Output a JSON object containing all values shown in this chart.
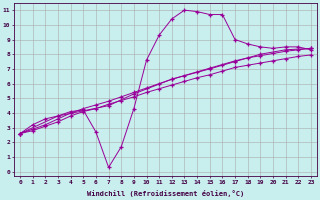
{
  "xlabel": "Windchill (Refroidissement éolien,°C)",
  "background_color": "#c8eeee",
  "grid_color": "#aaaaaa",
  "line_color": "#990099",
  "xlim": [
    -0.5,
    23.5
  ],
  "ylim": [
    -0.3,
    11.5
  ],
  "xticks": [
    0,
    1,
    2,
    3,
    4,
    5,
    6,
    7,
    8,
    9,
    10,
    11,
    12,
    13,
    14,
    15,
    16,
    17,
    18,
    19,
    20,
    21,
    22,
    23
  ],
  "yticks": [
    0,
    1,
    2,
    3,
    4,
    5,
    6,
    7,
    8,
    9,
    10,
    11
  ],
  "line1_x": [
    0,
    1,
    2,
    3,
    4,
    5,
    6,
    7,
    8,
    9,
    10,
    11,
    12,
    13,
    14,
    15,
    16,
    17,
    18,
    19,
    20,
    21,
    22,
    23
  ],
  "line1_y": [
    2.6,
    3.2,
    3.6,
    3.8,
    4.1,
    4.2,
    2.7,
    0.3,
    1.7,
    4.3,
    7.6,
    9.3,
    10.4,
    11.0,
    10.9,
    10.7,
    10.7,
    9.0,
    8.7,
    8.5,
    8.4,
    8.5,
    8.5,
    8.3
  ],
  "line2_x": [
    0,
    1,
    2,
    3,
    4,
    5,
    6,
    7,
    8,
    9,
    10,
    11,
    12,
    13,
    14,
    15,
    16,
    17,
    18,
    19,
    20,
    21,
    22,
    23
  ],
  "line2_y": [
    2.6,
    2.9,
    3.2,
    3.6,
    4.0,
    4.3,
    4.55,
    4.8,
    5.1,
    5.4,
    5.7,
    6.0,
    6.3,
    6.55,
    6.8,
    7.05,
    7.3,
    7.55,
    7.75,
    7.9,
    8.05,
    8.2,
    8.3,
    8.4
  ],
  "line3_x": [
    0,
    1,
    2,
    3,
    4,
    5,
    6,
    7,
    8,
    9,
    10,
    11,
    12,
    13,
    14,
    15,
    16,
    17,
    18,
    19,
    20,
    21,
    22,
    23
  ],
  "line3_y": [
    2.6,
    2.8,
    3.1,
    3.4,
    3.8,
    4.1,
    4.3,
    4.6,
    4.85,
    5.1,
    5.4,
    5.65,
    5.9,
    6.15,
    6.4,
    6.6,
    6.85,
    7.1,
    7.25,
    7.4,
    7.55,
    7.7,
    7.85,
    7.95
  ],
  "line4_x": [
    0,
    3,
    7,
    9,
    12,
    15,
    17,
    19,
    21,
    23
  ],
  "line4_y": [
    2.6,
    3.8,
    4.5,
    5.3,
    6.3,
    7.0,
    7.5,
    8.0,
    8.3,
    8.4
  ]
}
